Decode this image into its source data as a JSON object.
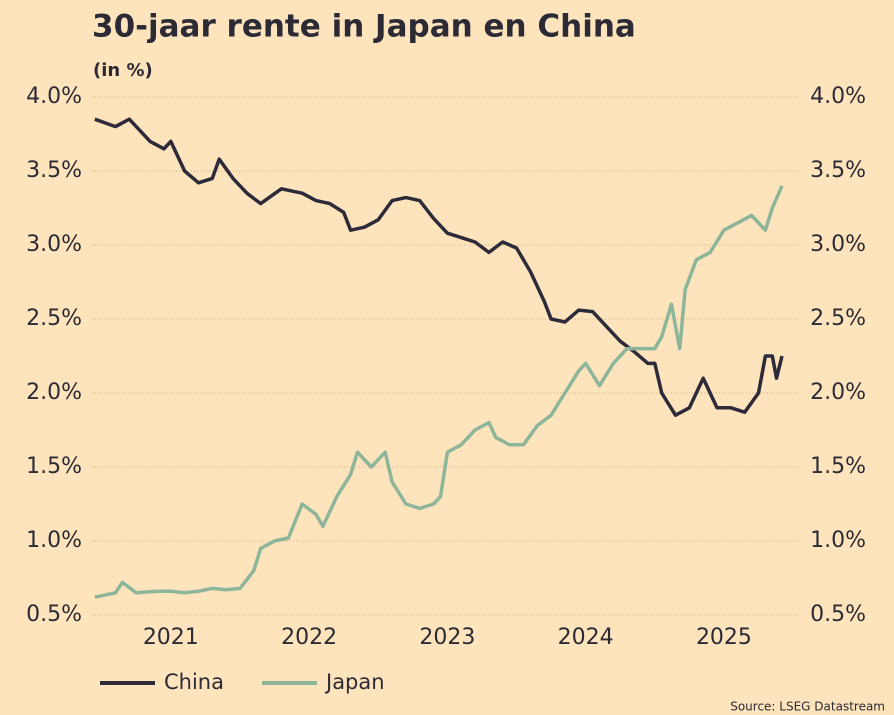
{
  "chart_data": {
    "type": "line",
    "title": "30-jaar rente in Japan en China",
    "subtitle": "(in %)",
    "source": "Source: LSEG Datastream",
    "legend": "bottom",
    "grid": true,
    "xlim": [
      2020.43,
      2025.55
    ],
    "xticks": [
      2021,
      2022,
      2023,
      2024,
      2025
    ],
    "ylim": [
      0.5,
      4.0
    ],
    "yticks": [
      {
        "value": 0.5,
        "label": "0.5%"
      },
      {
        "value": 1.0,
        "label": "1.0%"
      },
      {
        "value": 1.5,
        "label": "1.5%"
      },
      {
        "value": 2.0,
        "label": "2.0%"
      },
      {
        "value": 2.5,
        "label": "2.5%"
      },
      {
        "value": 3.0,
        "label": "3.0%"
      },
      {
        "value": 3.5,
        "label": "3.5%"
      },
      {
        "value": 4.0,
        "label": "4.0%"
      }
    ],
    "y2lim": [
      0.5,
      4.0
    ],
    "y2ticks": [
      {
        "value": 0.5,
        "label": "0.5%"
      },
      {
        "value": 1.0,
        "label": "1.0%"
      },
      {
        "value": 1.5,
        "label": "1.5%"
      },
      {
        "value": 2.0,
        "label": "2.0%"
      },
      {
        "value": 2.5,
        "label": "2.5%"
      },
      {
        "value": 3.0,
        "label": "3.0%"
      },
      {
        "value": 3.5,
        "label": "3.5%"
      },
      {
        "value": 4.0,
        "label": "4.0%"
      }
    ],
    "series": [
      {
        "name": "China",
        "color": "#2d2a3a",
        "x": [
          2020.45,
          2020.6,
          2020.7,
          2020.85,
          2020.95,
          2021.0,
          2021.1,
          2021.2,
          2021.3,
          2021.35,
          2021.45,
          2021.55,
          2021.65,
          2021.8,
          2021.95,
          2022.05,
          2022.15,
          2022.25,
          2022.3,
          2022.4,
          2022.5,
          2022.6,
          2022.7,
          2022.8,
          2022.9,
          2023.0,
          2023.1,
          2023.2,
          2023.3,
          2023.4,
          2023.5,
          2023.6,
          2023.7,
          2023.75,
          2023.85,
          2023.95,
          2024.05,
          2024.15,
          2024.25,
          2024.35,
          2024.45,
          2024.5,
          2024.55,
          2024.65,
          2024.75,
          2024.85,
          2024.95,
          2025.05,
          2025.15,
          2025.25,
          2025.3,
          2025.35,
          2025.38,
          2025.42
        ],
        "values": [
          3.85,
          3.8,
          3.85,
          3.7,
          3.65,
          3.7,
          3.5,
          3.42,
          3.45,
          3.58,
          3.45,
          3.35,
          3.28,
          3.38,
          3.35,
          3.3,
          3.28,
          3.22,
          3.1,
          3.12,
          3.17,
          3.3,
          3.32,
          3.3,
          3.18,
          3.08,
          3.05,
          3.02,
          2.95,
          3.02,
          2.98,
          2.82,
          2.62,
          2.5,
          2.48,
          2.56,
          2.55,
          2.45,
          2.35,
          2.28,
          2.2,
          2.2,
          2.0,
          1.85,
          1.9,
          2.1,
          1.9,
          1.9,
          1.87,
          2.0,
          2.25,
          2.25,
          2.1,
          2.25
        ]
      },
      {
        "name": "Japan",
        "color": "#8db59a",
        "x": [
          2020.45,
          2020.6,
          2020.65,
          2020.75,
          2020.9,
          2021.0,
          2021.1,
          2021.2,
          2021.3,
          2021.4,
          2021.5,
          2021.6,
          2021.65,
          2021.75,
          2021.85,
          2021.95,
          2022.05,
          2022.1,
          2022.2,
          2022.3,
          2022.35,
          2022.45,
          2022.55,
          2022.6,
          2022.7,
          2022.8,
          2022.9,
          2022.95,
          2023.0,
          2023.1,
          2023.2,
          2023.3,
          2023.35,
          2023.45,
          2023.55,
          2023.65,
          2023.75,
          2023.85,
          2023.95,
          2024.0,
          2024.1,
          2024.2,
          2024.3,
          2024.4,
          2024.5,
          2024.55,
          2024.62,
          2024.68,
          2024.72,
          2024.8,
          2024.9,
          2025.0,
          2025.1,
          2025.2,
          2025.3,
          2025.35,
          2025.42
        ],
        "values": [
          0.62,
          0.65,
          0.72,
          0.65,
          0.66,
          0.66,
          0.65,
          0.66,
          0.68,
          0.67,
          0.68,
          0.8,
          0.95,
          1.0,
          1.02,
          1.25,
          1.18,
          1.1,
          1.3,
          1.45,
          1.6,
          1.5,
          1.6,
          1.4,
          1.25,
          1.22,
          1.25,
          1.3,
          1.6,
          1.65,
          1.75,
          1.8,
          1.7,
          1.65,
          1.65,
          1.78,
          1.85,
          2.0,
          2.15,
          2.2,
          2.05,
          2.2,
          2.3,
          2.3,
          2.3,
          2.38,
          2.6,
          2.3,
          2.7,
          2.9,
          2.95,
          3.1,
          3.15,
          3.2,
          3.1,
          3.25,
          3.4
        ]
      }
    ]
  }
}
